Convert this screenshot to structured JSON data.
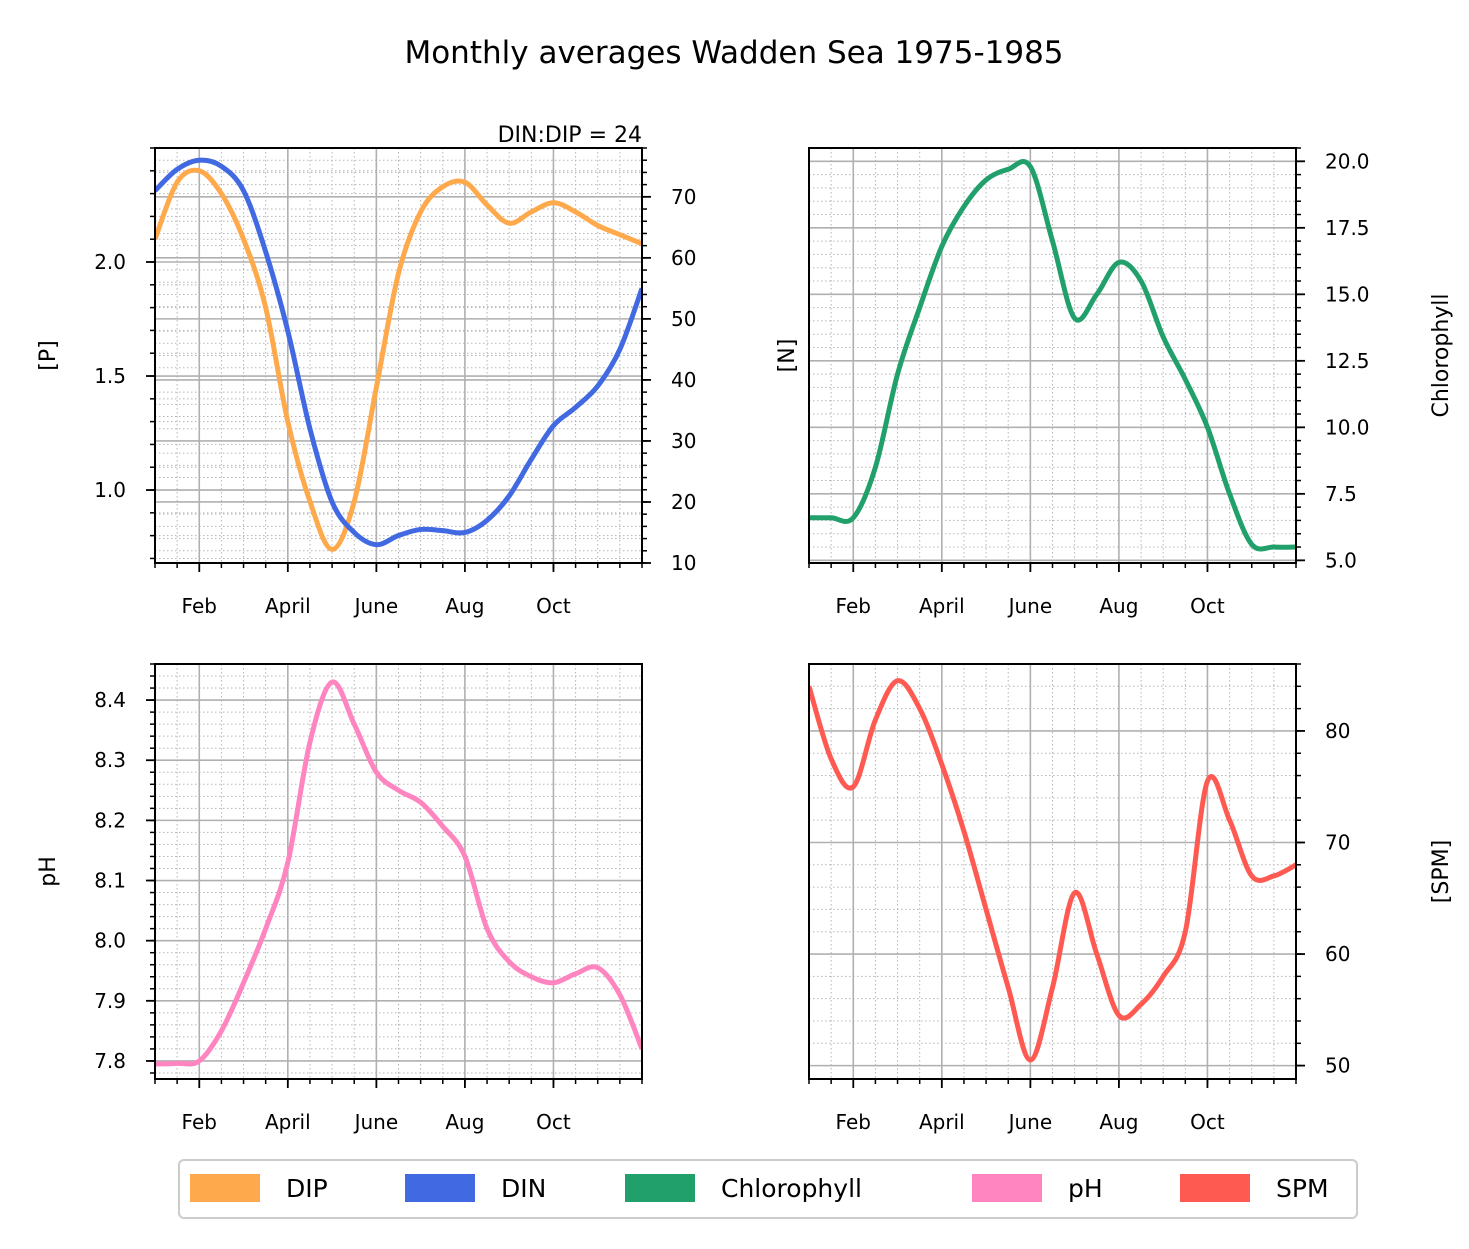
{
  "figure": {
    "title": "Monthly averages Wadden Sea 1975-1985"
  },
  "chart_data": [
    {
      "id": "nutrients",
      "type": "line",
      "annotation": "DIN:DIP = 24",
      "ylabel": "[P]",
      "y2label": "[N]",
      "xlim": [
        0,
        11
      ],
      "ylim": [
        0.68,
        2.5
      ],
      "y2lim": [
        10,
        78
      ],
      "xticks": [
        1,
        3,
        5,
        7,
        9
      ],
      "xtick_labels": [
        "Feb",
        "April",
        "June",
        "Aug",
        "Oct"
      ],
      "yticks": [
        1.0,
        1.5,
        2.0
      ],
      "ytick_labels": [
        "1.0",
        "1.5",
        "2.0"
      ],
      "y2ticks": [
        10,
        20,
        30,
        40,
        50,
        60,
        70
      ],
      "y2tick_labels": [
        "10",
        "20",
        "30",
        "40",
        "50",
        "60",
        "70"
      ],
      "grid": true,
      "series": [
        {
          "name": "DIP",
          "axis": "left",
          "color": "#FFA94D",
          "points": [
            [
              0,
              2.1
            ],
            [
              0.5,
              2.35
            ],
            [
              1,
              2.4
            ],
            [
              1.5,
              2.3
            ],
            [
              2,
              2.1
            ],
            [
              2.5,
              1.8
            ],
            [
              3,
              1.3
            ],
            [
              3.5,
              0.95
            ],
            [
              4,
              0.74
            ],
            [
              4.5,
              0.95
            ],
            [
              5,
              1.45
            ],
            [
              5.5,
              1.95
            ],
            [
              6,
              2.22
            ],
            [
              6.5,
              2.33
            ],
            [
              7,
              2.35
            ],
            [
              7.5,
              2.25
            ],
            [
              8,
              2.17
            ],
            [
              8.5,
              2.22
            ],
            [
              9,
              2.26
            ],
            [
              9.5,
              2.22
            ],
            [
              10,
              2.16
            ],
            [
              10.5,
              2.12
            ],
            [
              11,
              2.08
            ]
          ]
        },
        {
          "name": "DIN",
          "axis": "right",
          "color": "#4169E1",
          "points": [
            [
              0,
              71
            ],
            [
              0.5,
              74.5
            ],
            [
              1,
              76
            ],
            [
              1.5,
              75
            ],
            [
              2,
              71
            ],
            [
              2.5,
              61
            ],
            [
              3,
              48
            ],
            [
              3.5,
              32
            ],
            [
              4,
              20
            ],
            [
              4.5,
              15
            ],
            [
              5,
              13
            ],
            [
              5.5,
              14.5
            ],
            [
              6,
              15.5
            ],
            [
              6.5,
              15.3
            ],
            [
              7,
              15
            ],
            [
              7.5,
              17
            ],
            [
              8,
              21
            ],
            [
              8.5,
              27
            ],
            [
              9,
              32.5
            ],
            [
              9.5,
              35.5
            ],
            [
              10,
              39
            ],
            [
              10.5,
              45
            ],
            [
              11,
              55
            ]
          ]
        }
      ]
    },
    {
      "id": "chlorophyll",
      "type": "line",
      "y2label": "Chlorophyll",
      "xlim": [
        0,
        11
      ],
      "y2lim": [
        4.9,
        20.5
      ],
      "xticks": [
        1,
        3,
        5,
        7,
        9
      ],
      "xtick_labels": [
        "Feb",
        "April",
        "June",
        "Aug",
        "Oct"
      ],
      "y2ticks": [
        5.0,
        7.5,
        10.0,
        12.5,
        15.0,
        17.5,
        20.0
      ],
      "y2tick_labels": [
        "5.0",
        "7.5",
        "10.0",
        "12.5",
        "15.0",
        "17.5",
        "20.0"
      ],
      "grid": true,
      "series": [
        {
          "name": "Chlorophyll",
          "axis": "right",
          "color": "#22A06B",
          "points": [
            [
              0,
              6.6
            ],
            [
              0.5,
              6.6
            ],
            [
              1,
              6.6
            ],
            [
              1.5,
              8.5
            ],
            [
              2,
              12
            ],
            [
              2.5,
              14.5
            ],
            [
              3,
              16.8
            ],
            [
              3.5,
              18.3
            ],
            [
              4,
              19.3
            ],
            [
              4.5,
              19.7
            ],
            [
              5,
              19.8
            ],
            [
              5.5,
              17
            ],
            [
              6,
              14.1
            ],
            [
              6.5,
              15
            ],
            [
              7,
              16.2
            ],
            [
              7.5,
              15.5
            ],
            [
              8,
              13.4
            ],
            [
              8.5,
              11.8
            ],
            [
              9,
              10.0
            ],
            [
              9.5,
              7.5
            ],
            [
              10,
              5.6
            ],
            [
              10.5,
              5.5
            ],
            [
              11,
              5.5
            ]
          ]
        }
      ]
    },
    {
      "id": "ph",
      "type": "line",
      "ylabel": "pH",
      "xlim": [
        0,
        11
      ],
      "ylim": [
        7.77,
        8.46
      ],
      "xticks": [
        1,
        3,
        5,
        7,
        9
      ],
      "xtick_labels": [
        "Feb",
        "April",
        "June",
        "Aug",
        "Oct"
      ],
      "yticks": [
        7.8,
        7.9,
        8.0,
        8.1,
        8.2,
        8.3,
        8.4
      ],
      "ytick_labels": [
        "7.8",
        "7.9",
        "8.0",
        "8.1",
        "8.2",
        "8.3",
        "8.4"
      ],
      "grid": true,
      "series": [
        {
          "name": "pH",
          "axis": "left",
          "color": "#FF85C0",
          "points": [
            [
              0,
              7.795
            ],
            [
              0.5,
              7.796
            ],
            [
              1,
              7.8
            ],
            [
              1.5,
              7.85
            ],
            [
              2,
              7.93
            ],
            [
              2.5,
              8.02
            ],
            [
              3,
              8.13
            ],
            [
              3.5,
              8.33
            ],
            [
              4,
              8.43
            ],
            [
              4.5,
              8.36
            ],
            [
              5,
              8.28
            ],
            [
              5.5,
              8.25
            ],
            [
              6,
              8.23
            ],
            [
              6.5,
              8.19
            ],
            [
              7,
              8.14
            ],
            [
              7.5,
              8.02
            ],
            [
              8,
              7.965
            ],
            [
              8.5,
              7.94
            ],
            [
              9,
              7.93
            ],
            [
              9.5,
              7.945
            ],
            [
              10,
              7.955
            ],
            [
              10.5,
              7.91
            ],
            [
              11,
              7.82
            ]
          ]
        }
      ]
    },
    {
      "id": "spm",
      "type": "line",
      "y2label": "[SPM]",
      "xlim": [
        0,
        11
      ],
      "y2lim": [
        48.8,
        86
      ],
      "xticks": [
        1,
        3,
        5,
        7,
        9
      ],
      "xtick_labels": [
        "Feb",
        "April",
        "June",
        "Aug",
        "Oct"
      ],
      "y2ticks": [
        50,
        60,
        70,
        80
      ],
      "y2tick_labels": [
        "50",
        "60",
        "70",
        "80"
      ],
      "grid": true,
      "series": [
        {
          "name": "SPM",
          "axis": "right",
          "color": "#FF5A52",
          "points": [
            [
              0,
              84
            ],
            [
              0.5,
              77.5
            ],
            [
              1,
              75
            ],
            [
              1.5,
              81
            ],
            [
              2,
              84.5
            ],
            [
              2.5,
              82
            ],
            [
              3,
              77
            ],
            [
              3.5,
              71
            ],
            [
              4,
              64
            ],
            [
              4.5,
              57
            ],
            [
              5,
              50.5
            ],
            [
              5.5,
              57
            ],
            [
              6,
              65.5
            ],
            [
              6.5,
              60
            ],
            [
              7,
              54.5
            ],
            [
              7.5,
              55.5
            ],
            [
              8,
              58
            ],
            [
              8.5,
              62
            ],
            [
              9,
              75.5
            ],
            [
              9.5,
              72
            ],
            [
              10,
              67
            ],
            [
              10.5,
              67
            ],
            [
              11,
              68
            ]
          ]
        }
      ]
    }
  ],
  "legend": {
    "placement": "bottom-center",
    "entries": [
      {
        "label": "DIP",
        "color": "#FFA94D"
      },
      {
        "label": "DIN",
        "color": "#4169E1"
      },
      {
        "label": "Chlorophyll",
        "color": "#22A06B"
      },
      {
        "label": "pH",
        "color": "#FF85C0"
      },
      {
        "label": "SPM",
        "color": "#FF5A52"
      }
    ]
  }
}
